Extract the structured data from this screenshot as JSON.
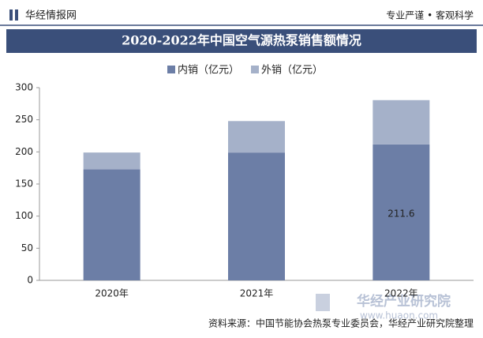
{
  "header": {
    "brand": "华经情报网",
    "slogan": "专业严谨 • 客观科学"
  },
  "chart_data": {
    "type": "stacked_bar",
    "title": "2020-2022年中国空气源热泵销售额情况",
    "categories": [
      "2020年",
      "2021年",
      "2022年"
    ],
    "series": [
      {
        "name": "内销（亿元）",
        "color": "#6c7ea6",
        "values": [
          173,
          199,
          211.6
        ],
        "value_labels": [
          null,
          null,
          "211.6"
        ]
      },
      {
        "name": "外销（亿元）",
        "color": "#a5b1c9",
        "values": [
          26,
          49,
          69
        ]
      }
    ],
    "ylim": [
      0,
      300
    ],
    "yticks": [
      0,
      50,
      100,
      150,
      200,
      250,
      300
    ],
    "grid": false,
    "legend": "top"
  },
  "footer": {
    "source": "资料来源：中国节能协会热泵专业委员会，华经产业研究院整理",
    "watermark": "华经产业研究院",
    "url": "www.huaon.com"
  }
}
